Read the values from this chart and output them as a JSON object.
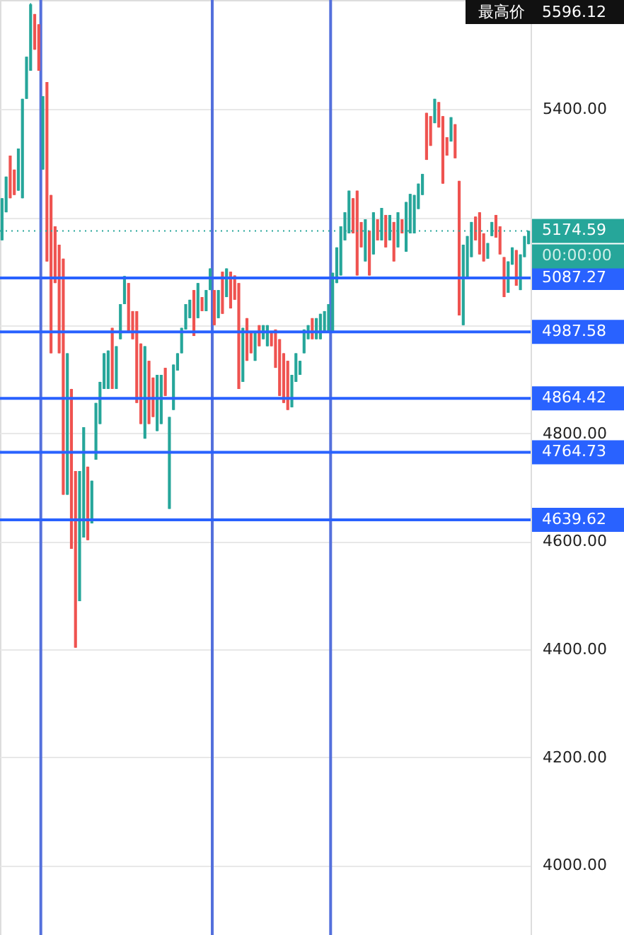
{
  "chart_data": {
    "type": "candlestick",
    "categories": [
      null,
      null,
      null,
      null,
      null,
      null,
      null,
      null,
      null,
      null,
      null,
      null,
      null,
      null,
      null,
      null,
      null,
      null,
      null,
      null,
      null,
      null,
      null,
      null,
      null,
      null,
      null,
      null,
      null,
      null,
      null,
      null,
      null,
      null,
      null,
      null,
      null,
      null,
      null,
      null,
      null,
      null,
      null,
      null,
      null,
      null,
      null,
      null,
      null,
      null,
      null,
      null,
      null,
      null,
      null,
      null,
      null,
      null,
      null,
      null,
      null,
      null,
      null,
      null,
      null,
      null,
      null,
      null,
      null,
      null,
      null,
      null,
      null,
      null,
      null,
      null,
      null,
      null,
      null,
      null,
      null,
      null,
      null,
      null,
      null,
      null,
      null,
      null,
      null,
      null,
      null,
      null,
      null,
      null,
      null,
      null,
      null,
      null,
      null,
      null,
      null,
      null,
      null,
      null,
      null,
      null,
      null,
      null,
      null,
      null,
      null,
      null,
      null,
      null,
      null,
      null,
      null,
      null,
      null,
      null,
      null,
      null,
      null,
      null,
      null,
      null,
      null,
      null,
      null,
      null
    ],
    "ohlc": [
      [
        5157,
        5235,
        5157,
        5235
      ],
      [
        5209,
        5275,
        5209,
        5275
      ],
      [
        5314,
        5314,
        5235,
        5235
      ],
      [
        5288,
        5288,
        5241,
        5241
      ],
      [
        5249,
        5327,
        5249,
        5327
      ],
      [
        5235,
        5419,
        5235,
        5419
      ],
      [
        5419,
        5497,
        5419,
        5497
      ],
      [
        5471,
        5596.12,
        5471,
        5594
      ],
      [
        5576,
        5576,
        5510,
        5510
      ],
      [
        5557,
        5557,
        5471,
        5471
      ],
      [
        5288,
        5424,
        5288,
        5424
      ],
      [
        5450,
        5450,
        5118,
        5118
      ],
      [
        5241,
        5241,
        4948,
        4948
      ],
      [
        5183,
        5183,
        5078,
        5078
      ],
      [
        5149,
        5149,
        4948,
        4948
      ],
      [
        5123,
        5123,
        4686,
        4686
      ],
      [
        4686,
        4948,
        4686,
        4948
      ],
      [
        4882,
        4882,
        4586,
        4586
      ],
      [
        4730,
        4730,
        4403,
        4403
      ],
      [
        4489,
        4730,
        4489,
        4730
      ],
      [
        4607,
        4811,
        4607,
        4811
      ],
      [
        4738,
        4738,
        4602,
        4602
      ],
      [
        4633,
        4712,
        4633,
        4712
      ],
      [
        4751,
        4856,
        4751,
        4856
      ],
      [
        4817,
        4895,
        4817,
        4895
      ],
      [
        4882,
        4948,
        4882,
        4948
      ],
      [
        4882,
        4953,
        4882,
        4953
      ],
      [
        4995,
        4995,
        4882,
        4882
      ],
      [
        4882,
        4961,
        4882,
        4961
      ],
      [
        4974,
        5039,
        4974,
        5039
      ],
      [
        5039,
        5091,
        5039,
        5091
      ],
      [
        5078,
        5078,
        4987,
        4987
      ],
      [
        5026,
        5026,
        4974,
        4974
      ],
      [
        5026,
        5026,
        4856,
        4856
      ],
      [
        4966,
        4966,
        4817,
        4817
      ],
      [
        4790,
        4961,
        4790,
        4961
      ],
      [
        4934,
        4934,
        4817,
        4817
      ],
      [
        4903,
        4903,
        4830,
        4830
      ],
      [
        4804,
        4908,
        4804,
        4908
      ],
      [
        4817,
        4908,
        4817,
        4908
      ],
      [
        4921,
        4921,
        4869,
        4869
      ],
      [
        4660,
        4830,
        4660,
        4830
      ],
      [
        4843,
        4927,
        4843,
        4927
      ],
      [
        4916,
        4948,
        4916,
        4948
      ],
      [
        4948,
        4995,
        4948,
        4995
      ],
      [
        4992,
        5039,
        4992,
        5039
      ],
      [
        5013,
        5047,
        5013,
        5047
      ],
      [
        5065,
        5065,
        4980,
        4980
      ],
      [
        5013,
        5078,
        5013,
        5078
      ],
      [
        5052,
        5052,
        5026,
        5026
      ],
      [
        5026,
        5065,
        5026,
        5065
      ],
      [
        5065,
        5105,
        5065,
        5105
      ],
      [
        5065,
        5065,
        5000,
        5000
      ],
      [
        5013,
        5065,
        5013,
        5065
      ],
      [
        5099,
        5099,
        5021,
        5021
      ],
      [
        5052,
        5105,
        5052,
        5105
      ],
      [
        5099,
        5099,
        5031,
        5031
      ],
      [
        5092,
        5092,
        5047,
        5047
      ],
      [
        5078,
        5078,
        4882,
        4882
      ],
      [
        4895,
        4995,
        4895,
        4995
      ],
      [
        5013,
        5013,
        4934,
        4934
      ],
      [
        4987,
        4987,
        4948,
        4948
      ],
      [
        4934,
        4987,
        4934,
        4987
      ],
      [
        5000,
        5000,
        4961,
        4961
      ],
      [
        4974,
        5000,
        4974,
        5000
      ],
      [
        4961,
        5000,
        4961,
        5000
      ],
      [
        4987,
        4987,
        4961,
        4961
      ],
      [
        4992,
        4992,
        4921,
        4921
      ],
      [
        4974,
        4974,
        4869,
        4869
      ],
      [
        4948,
        4948,
        4856,
        4856
      ],
      [
        4934,
        4934,
        4843,
        4843
      ],
      [
        4848,
        4908,
        4848,
        4908
      ],
      [
        4895,
        4948,
        4895,
        4948
      ],
      [
        4908,
        4934,
        4908,
        4934
      ],
      [
        4948,
        4992,
        4948,
        4992
      ],
      [
        4974,
        5000,
        4974,
        5000
      ],
      [
        5013,
        5013,
        4974,
        4974
      ],
      [
        4974,
        5013,
        4974,
        5013
      ],
      [
        4974,
        5021,
        4974,
        5021
      ],
      [
        4987,
        5026,
        4987,
        5026
      ],
      [
        4987,
        5039,
        4987,
        5039
      ],
      [
        4987,
        5097,
        4987,
        5097
      ],
      [
        5078,
        5144,
        5078,
        5144
      ],
      [
        5092,
        5183,
        5092,
        5183
      ],
      [
        5157,
        5209,
        5157,
        5209
      ],
      [
        5170,
        5249,
        5170,
        5249
      ],
      [
        5235,
        5235,
        5170,
        5170
      ],
      [
        5249,
        5249,
        5092,
        5092
      ],
      [
        5191,
        5191,
        5144,
        5144
      ],
      [
        5118,
        5196,
        5118,
        5196
      ],
      [
        5175,
        5175,
        5092,
        5092
      ],
      [
        5131,
        5209,
        5131,
        5209
      ],
      [
        5196,
        5196,
        5157,
        5157
      ],
      [
        5157,
        5217,
        5157,
        5217
      ],
      [
        5204,
        5204,
        5144,
        5144
      ],
      [
        5157,
        5204,
        5157,
        5204
      ],
      [
        5191,
        5191,
        5118,
        5118
      ],
      [
        5144,
        5209,
        5144,
        5209
      ],
      [
        5196,
        5196,
        5170,
        5170
      ],
      [
        5136,
        5228,
        5136,
        5228
      ],
      [
        5170,
        5243,
        5170,
        5243
      ],
      [
        5170,
        5241,
        5170,
        5241
      ],
      [
        5215,
        5262,
        5215,
        5262
      ],
      [
        5241,
        5280,
        5241,
        5280
      ],
      [
        5393,
        5393,
        5306,
        5306
      ],
      [
        5387,
        5387,
        5332,
        5332
      ],
      [
        5374,
        5419,
        5374,
        5419
      ],
      [
        5413,
        5413,
        5366,
        5366
      ],
      [
        5387,
        5387,
        5262,
        5262
      ],
      [
        5348,
        5348,
        5314,
        5314
      ],
      [
        5340,
        5385,
        5340,
        5385
      ],
      [
        5372,
        5372,
        5309,
        5309
      ],
      [
        5267,
        5267,
        5018,
        5018
      ],
      [
        5000,
        5149,
        5000,
        5149
      ],
      [
        5086,
        5165,
        5086,
        5165
      ],
      [
        5126,
        5191,
        5126,
        5191
      ],
      [
        5201,
        5201,
        5157,
        5157
      ],
      [
        5209,
        5209,
        5131,
        5131
      ],
      [
        5170,
        5170,
        5118,
        5118
      ],
      [
        5123,
        5152,
        5123,
        5152
      ],
      [
        5165,
        5191,
        5165,
        5191
      ],
      [
        5204,
        5204,
        5162,
        5162
      ],
      [
        5183,
        5183,
        5131,
        5131
      ],
      [
        5126,
        5126,
        5052,
        5052
      ],
      [
        5060,
        5118,
        5060,
        5118
      ],
      [
        5112,
        5144,
        5112,
        5144
      ],
      [
        5139,
        5139,
        5073,
        5073
      ],
      [
        5065,
        5131,
        5065,
        5131
      ],
      [
        5126,
        5165,
        5126,
        5165
      ],
      [
        5150,
        5175,
        5150,
        5174.59
      ]
    ],
    "colors": [
      "#26a69a",
      "#26a69a",
      "#ef5350",
      "#ef5350",
      "#26a69a",
      "#26a69a",
      "#26a69a",
      "#26a69a",
      "#ef5350",
      "#ef5350",
      "#26a69a",
      "#ef5350",
      "#ef5350",
      "#ef5350",
      "#ef5350",
      "#ef5350",
      "#26a69a",
      "#ef5350",
      "#ef5350",
      "#26a69a",
      "#26a69a",
      "#ef5350",
      "#26a69a",
      "#26a69a",
      "#26a69a",
      "#26a69a",
      "#26a69a",
      "#ef5350",
      "#26a69a",
      "#26a69a",
      "#26a69a",
      "#ef5350",
      "#ef5350",
      "#ef5350",
      "#ef5350",
      "#26a69a",
      "#ef5350",
      "#ef5350",
      "#26a69a",
      "#26a69a",
      "#ef5350",
      "#26a69a",
      "#26a69a",
      "#26a69a",
      "#26a69a",
      "#26a69a",
      "#26a69a",
      "#ef5350",
      "#26a69a",
      "#ef5350",
      "#26a69a",
      "#26a69a",
      "#ef5350",
      "#26a69a",
      "#ef5350",
      "#26a69a",
      "#ef5350",
      "#ef5350",
      "#ef5350",
      "#26a69a",
      "#ef5350",
      "#ef5350",
      "#26a69a",
      "#ef5350",
      "#26a69a",
      "#26a69a",
      "#ef5350",
      "#ef5350",
      "#ef5350",
      "#ef5350",
      "#ef5350",
      "#26a69a",
      "#26a69a",
      "#26a69a",
      "#26a69a",
      "#26a69a",
      "#ef5350",
      "#26a69a",
      "#26a69a",
      "#26a69a",
      "#26a69a",
      "#26a69a",
      "#26a69a",
      "#26a69a",
      "#26a69a",
      "#26a69a",
      "#ef5350",
      "#ef5350",
      "#ef5350",
      "#26a69a",
      "#ef5350",
      "#26a69a",
      "#ef5350",
      "#26a69a",
      "#ef5350",
      "#26a69a",
      "#ef5350",
      "#26a69a",
      "#ef5350",
      "#26a69a",
      "#26a69a",
      "#26a69a",
      "#26a69a",
      "#26a69a",
      "#ef5350",
      "#ef5350",
      "#26a69a",
      "#ef5350",
      "#ef5350",
      "#ef5350",
      "#26a69a",
      "#ef5350",
      "#ef5350",
      "#26a69a",
      "#26a69a",
      "#26a69a",
      "#ef5350",
      "#ef5350",
      "#ef5350",
      "#26a69a",
      "#26a69a",
      "#ef5350",
      "#ef5350",
      "#ef5350",
      "#26a69a",
      "#26a69a",
      "#ef5350",
      "#26a69a",
      "#26a69a",
      "#26a69a"
    ],
    "ylim": [
      3871,
      5602
    ],
    "yticks": [
      {
        "value": 4000,
        "label": "4000.00"
      },
      {
        "value": 4200,
        "label": "4200.00"
      },
      {
        "value": 4400,
        "label": "4400.00"
      },
      {
        "value": 4600,
        "label": "4600.00"
      },
      {
        "value": 4800,
        "label": "4800.00"
      },
      {
        "value": 5000,
        "label": null
      },
      {
        "value": 5200,
        "label": null
      },
      {
        "value": 5400,
        "label": "5400.00"
      }
    ],
    "tick_labels": "y",
    "grid": "y",
    "ref_lines": [
      {
        "axis": "y",
        "value": 5174.59,
        "label": "5174.59",
        "color": "#26a69a",
        "line_style": "dotted"
      },
      {
        "axis": "y",
        "value": 5087.27,
        "label": "5087.27",
        "color": "#2962ff"
      },
      {
        "axis": "y",
        "value": 4987.58,
        "label": "4987.58",
        "color": "#2962ff"
      },
      {
        "axis": "y",
        "value": 4864.42,
        "label": "4864.42",
        "color": "#2962ff"
      },
      {
        "axis": "y",
        "value": 4764.73,
        "label": "4764.73",
        "color": "#2962ff"
      },
      {
        "axis": "y",
        "value": 4639.62,
        "label": "4639.62",
        "color": "#2962ff"
      }
    ],
    "annotations": [
      "最高价",
      "5596.12",
      "00:00:00"
    ]
  }
}
